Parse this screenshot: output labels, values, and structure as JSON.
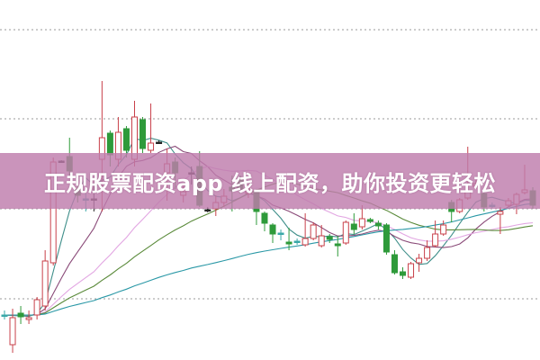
{
  "banner": {
    "title": "正规股票配资app 线上配资，助你投资更轻松"
  },
  "colors": {
    "up": "#c8404a",
    "down": "#2e9a3a",
    "doji_dark": "#222222",
    "doji_teal": "#3aa8a8",
    "grid": "#999999",
    "banner": "#c48db6"
  },
  "chart_data": {
    "type": "candlestick",
    "title": "",
    "xlabel": "",
    "ylabel": "",
    "ylim": [
      0,
      40
    ],
    "grid": true,
    "gridlines_y": [
      6.8,
      16.8,
      26.8,
      36.7
    ],
    "moving_averages": [
      {
        "period": 5,
        "color": "#3f8f8a"
      },
      {
        "period": 10,
        "color": "#8a4a78"
      },
      {
        "period": 20,
        "color": "#e2a6e2"
      },
      {
        "period": 30,
        "color": "#5a8a3a"
      },
      {
        "period": 60,
        "color": "#2a98a6"
      }
    ],
    "candles": [
      [
        5.0,
        5.0,
        5.5,
        4.5
      ],
      [
        1.7,
        4.7,
        5.7,
        0.8
      ],
      [
        5.2,
        4.8,
        6.0,
        4.0
      ],
      [
        4.5,
        4.7,
        5.5,
        4.0
      ],
      [
        5.0,
        6.7,
        7.0,
        4.5
      ],
      [
        6.0,
        11.0,
        12.2,
        5.5
      ],
      [
        10.8,
        22.0,
        22.5,
        10.5
      ],
      [
        22.1,
        22.0,
        22.2,
        21.9
      ],
      [
        22.6,
        21.0,
        24.7,
        20.5
      ],
      [
        19.0,
        18.3,
        20.0,
        17.5
      ],
      [
        17.8,
        17.9,
        18.5,
        16.5
      ],
      [
        17.8,
        17.9,
        19.5,
        16.5
      ],
      [
        22.3,
        24.7,
        31.0,
        16.5
      ],
      [
        25.2,
        22.8,
        25.5,
        21.5
      ],
      [
        22.3,
        25.3,
        27.0,
        21.5
      ],
      [
        25.7,
        23.3,
        26.0,
        22.5
      ],
      [
        22.3,
        27.0,
        28.8,
        21.5
      ],
      [
        26.7,
        23.5,
        27.0,
        23.0
      ],
      [
        23.3,
        24.1,
        28.5,
        23.0
      ],
      [
        24.2,
        24.2,
        24.4,
        24.0
      ],
      [
        20.8,
        21.8,
        23.5,
        17.7
      ],
      [
        22.0,
        20.8,
        22.5,
        19.0
      ],
      [
        18.3,
        18.7,
        19.5,
        17.5
      ],
      [
        20.8,
        20.8,
        21.5,
        19.5
      ],
      [
        21.5,
        17.2,
        23.2,
        17.0
      ],
      [
        16.7,
        16.7,
        17.0,
        16.4
      ],
      [
        16.8,
        17.5,
        18.3,
        16.0
      ],
      [
        17.5,
        18.2,
        19.0,
        17.0
      ],
      [
        19.2,
        18.8,
        20.5,
        16.5
      ],
      [
        20.0,
        19.0,
        20.5,
        18.5
      ],
      [
        18.5,
        19.0,
        19.5,
        18.0
      ],
      [
        18.7,
        16.5,
        19.0,
        15.0
      ],
      [
        16.3,
        15.2,
        16.5,
        14.3
      ],
      [
        15.0,
        14.0,
        15.2,
        13.0
      ],
      [
        14.0,
        14.1,
        14.5,
        13.3
      ],
      [
        13.1,
        12.9,
        14.7,
        12.2
      ],
      [
        13.2,
        13.2,
        13.5,
        12.8
      ],
      [
        12.8,
        13.5,
        16.3,
        12.6
      ],
      [
        13.5,
        15.0,
        15.3,
        13.3
      ],
      [
        12.7,
        13.8,
        15.0,
        12.5
      ],
      [
        13.7,
        13.4,
        14.0,
        13.0
      ],
      [
        12.9,
        12.7,
        13.8,
        11.5
      ],
      [
        13.0,
        15.3,
        15.5,
        12.8
      ],
      [
        15.1,
        14.5,
        16.3,
        14.0
      ],
      [
        14.8,
        15.7,
        17.2,
        14.5
      ],
      [
        15.6,
        15.4,
        15.8,
        15.2
      ],
      [
        15.2,
        14.9,
        15.5,
        14.5
      ],
      [
        15.0,
        12.0,
        15.2,
        11.7
      ],
      [
        11.7,
        9.7,
        12.2,
        9.5
      ],
      [
        9.8,
        9.4,
        10.3,
        9.0
      ],
      [
        9.2,
        10.7,
        10.9,
        9.0
      ],
      [
        10.8,
        11.3,
        11.8,
        9.8
      ],
      [
        11.3,
        12.5,
        13.3,
        11.0
      ],
      [
        12.7,
        14.0,
        15.5,
        12.5
      ],
      [
        14.0,
        15.0,
        15.5,
        13.8
      ],
      [
        17.5,
        16.5,
        17.8,
        15.3
      ],
      [
        16.5,
        17.8,
        18.0,
        16.3
      ],
      [
        18.0,
        18.8,
        23.7,
        17.8
      ],
      [
        19.3,
        19.6,
        20.0,
        19.0
      ],
      [
        18.5,
        17.0,
        19.0,
        16.5
      ],
      [
        17.2,
        17.2,
        17.5,
        16.9
      ],
      [
        16.2,
        16.5,
        17.0,
        14.0
      ],
      [
        17.2,
        17.7,
        18.0,
        17.0
      ],
      [
        17.3,
        18.4,
        18.6,
        16.2
      ],
      [
        18.6,
        18.9,
        21.7,
        18.4
      ],
      [
        18.8,
        17.2,
        19.2,
        16.8
      ]
    ],
    "candle_fields": [
      "open",
      "close",
      "high",
      "low"
    ]
  }
}
